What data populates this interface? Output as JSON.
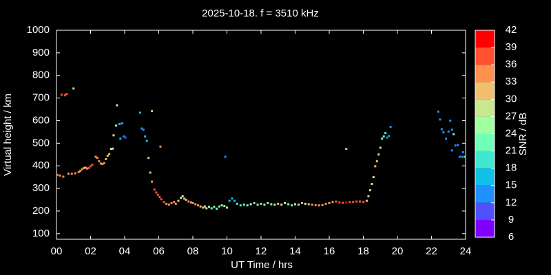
{
  "chart_data": {
    "type": "scatter",
    "title": "2025-10-18. f = 3510 kHz",
    "x_label": "UT Time / hrs",
    "y_label": "Virtual height / km",
    "colorbar_label": "SNR / dB",
    "xlim": [
      0,
      24
    ],
    "xticks": [
      {
        "value": 0,
        "label": "00"
      },
      {
        "value": 2,
        "label": "02"
      },
      {
        "value": 4,
        "label": "04"
      },
      {
        "value": 6,
        "label": "06"
      },
      {
        "value": 8,
        "label": "08"
      },
      10,
      12,
      14,
      16,
      18,
      20,
      22,
      24
    ],
    "ylim": [
      75,
      1000
    ],
    "yticks": [
      100,
      200,
      300,
      400,
      500,
      600,
      700,
      800,
      900,
      1000
    ],
    "clim": [
      6,
      42
    ],
    "cticks": [
      6,
      9,
      12,
      15,
      18,
      21,
      24,
      27,
      30,
      33,
      36,
      39,
      42
    ],
    "colormap": [
      "#8000ff",
      "#5050ff",
      "#2090ff",
      "#10c0e8",
      "#40e8d0",
      "#70ffb8",
      "#a0ffa0",
      "#c8e890",
      "#f0c070",
      "#ff9050",
      "#ff5030",
      "#ff0000"
    ],
    "x": [
      0.05,
      0.2,
      0.4,
      0.3,
      0.5,
      0.6,
      1.0,
      0.7,
      0.9,
      1.1,
      1.3,
      1.4,
      1.5,
      1.6,
      1.7,
      1.8,
      1.9,
      2.0,
      2.1,
      2.3,
      2.4,
      2.5,
      2.6,
      2.7,
      2.8,
      2.9,
      3.0,
      3.1,
      3.2,
      3.3,
      3.35,
      3.5,
      3.55,
      3.7,
      3.75,
      3.85,
      3.95,
      4.05,
      4.9,
      5.0,
      5.1,
      5.2,
      5.3,
      5.4,
      5.5,
      5.6,
      5.6,
      6.1,
      5.75,
      5.85,
      5.95,
      6.05,
      6.15,
      6.3,
      6.45,
      6.6,
      6.75,
      6.9,
      7.0,
      7.15,
      7.3,
      7.4,
      7.5,
      7.6,
      7.75,
      7.9,
      8.0,
      8.15,
      8.3,
      8.45,
      8.6,
      8.7,
      8.8,
      8.95,
      9.1,
      9.25,
      9.4,
      9.55,
      9.7,
      9.85,
      9.9,
      10.0,
      10.15,
      10.3,
      10.45,
      10.6,
      10.8,
      11.0,
      11.2,
      11.4,
      11.6,
      11.8,
      12.0,
      12.2,
      12.4,
      12.6,
      12.8,
      13.0,
      13.2,
      13.4,
      13.6,
      13.8,
      14.0,
      14.2,
      14.4,
      14.6,
      14.8,
      15.0,
      15.2,
      15.4,
      15.6,
      15.8,
      16.0,
      16.2,
      16.4,
      16.6,
      16.8,
      17.0,
      17.2,
      17.4,
      17.6,
      17.8,
      18.0,
      17.0,
      18.2,
      18.3,
      18.4,
      18.5,
      18.6,
      18.7,
      18.8,
      18.9,
      19.0,
      19.1,
      19.2,
      19.3,
      19.4,
      19.5,
      19.6,
      22.4,
      22.5,
      22.6,
      22.7,
      22.85,
      23.0,
      23.1,
      23.2,
      23.3,
      23.2,
      23.4,
      23.55,
      23.65,
      23.8,
      23.85,
      23.95
    ],
    "values": [
      360,
      357,
      352,
      715,
      712,
      718,
      742,
      365,
      365,
      367,
      372,
      378,
      385,
      390,
      392,
      388,
      390,
      398,
      405,
      440,
      435,
      420,
      410,
      408,
      412,
      430,
      445,
      452,
      475,
      476,
      535,
      578,
      668,
      585,
      520,
      588,
      530,
      525,
      635,
      565,
      560,
      530,
      510,
      435,
      370,
      330,
      642,
      485,
      295,
      282,
      272,
      262,
      252,
      240,
      232,
      228,
      235,
      240,
      232,
      245,
      258,
      265,
      255,
      250,
      242,
      238,
      235,
      230,
      225,
      220,
      215,
      220,
      212,
      218,
      212,
      218,
      210,
      220,
      225,
      222,
      440,
      215,
      245,
      255,
      245,
      232,
      225,
      228,
      225,
      230,
      235,
      228,
      232,
      228,
      235,
      230,
      228,
      232,
      228,
      235,
      230,
      225,
      230,
      228,
      235,
      232,
      230,
      228,
      226,
      225,
      226,
      232,
      235,
      240,
      242,
      238,
      236,
      238,
      240,
      240,
      242,
      242,
      240,
      475,
      245,
      265,
      292,
      320,
      350,
      398,
      420,
      450,
      480,
      520,
      530,
      545,
      525,
      532,
      572,
      640,
      605,
      562,
      548,
      520,
      552,
      600,
      560,
      540,
      468,
      490,
      492,
      440,
      440,
      460,
      440
    ],
    "snr": [
      33,
      33,
      33,
      36,
      36,
      36,
      27,
      33,
      33,
      33,
      33,
      33,
      33,
      33,
      30,
      33,
      36,
      36,
      36,
      33,
      33,
      33,
      33,
      33,
      33,
      30,
      30,
      30,
      27,
      27,
      27,
      24,
      24,
      15,
      15,
      15,
      12,
      9,
      15,
      12,
      12,
      15,
      15,
      30,
      30,
      33,
      30,
      33,
      36,
      36,
      36,
      36,
      36,
      36,
      33,
      33,
      33,
      33,
      33,
      30,
      27,
      27,
      30,
      30,
      33,
      33,
      33,
      33,
      33,
      30,
      30,
      27,
      24,
      24,
      21,
      21,
      21,
      21,
      24,
      24,
      12,
      27,
      15,
      15,
      15,
      18,
      18,
      21,
      21,
      24,
      21,
      24,
      21,
      24,
      24,
      27,
      24,
      30,
      27,
      24,
      24,
      21,
      24,
      27,
      30,
      27,
      30,
      33,
      33,
      33,
      33,
      33,
      33,
      33,
      36,
      36,
      36,
      39,
      36,
      36,
      36,
      36,
      36,
      30,
      30,
      30,
      27,
      27,
      27,
      30,
      30,
      27,
      24,
      21,
      21,
      18,
      12,
      12,
      12,
      12,
      12,
      12,
      12,
      12,
      12,
      12,
      12,
      21,
      12,
      12,
      12,
      12,
      12,
      12,
      18
    ]
  }
}
